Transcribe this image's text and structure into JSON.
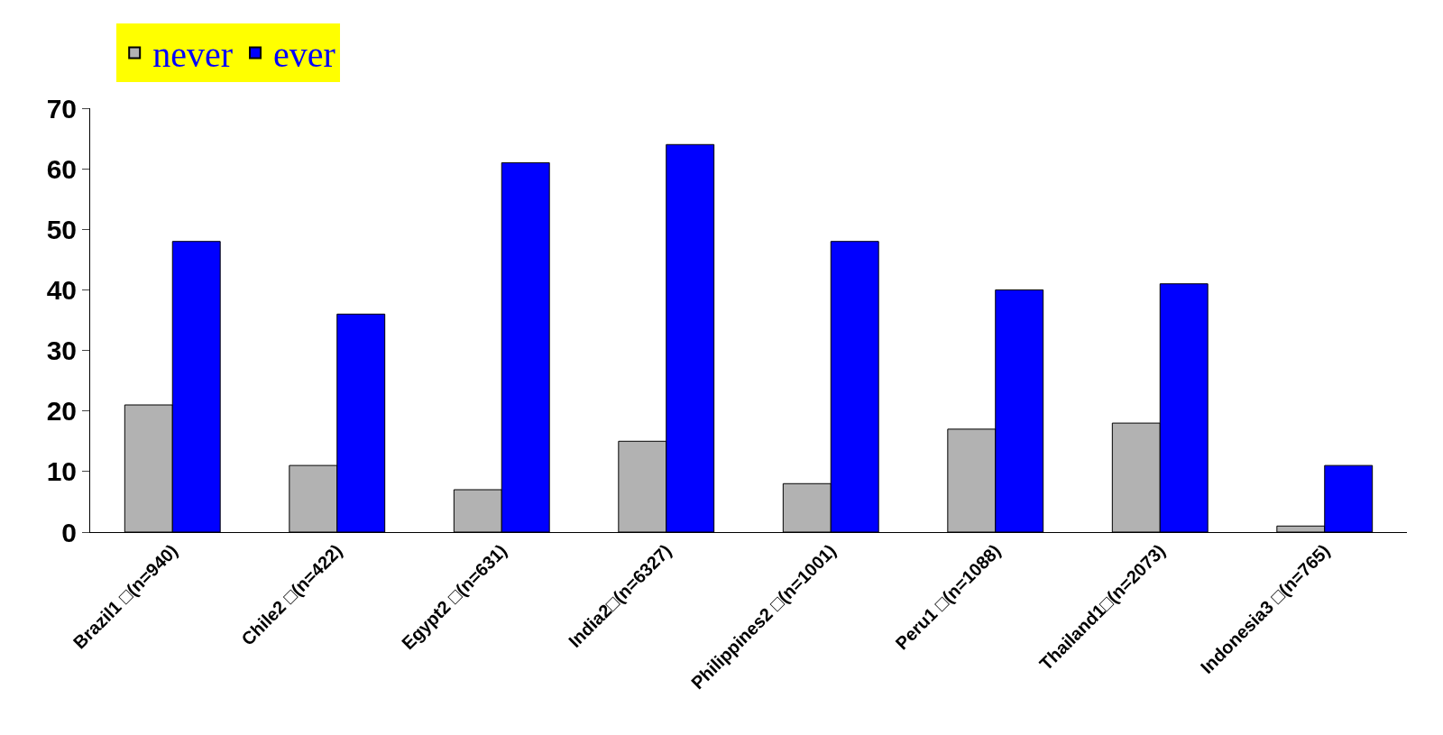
{
  "chart_data": {
    "type": "bar",
    "categories": [
      "Brazil1 □(n=940)",
      "Chile2 □(n=422)",
      "Egypt2 □(n=631)",
      "India2□(n=6327)",
      "Philippines2 □(n=1001)",
      "Peru1 □(n=1088)",
      "Thailand1□(n=2073)",
      "Indonesia3 □(n=765)"
    ],
    "series": [
      {
        "name": "never",
        "color": "#b2b2b2",
        "values": [
          21,
          11,
          7,
          15,
          8,
          17,
          18,
          1
        ]
      },
      {
        "name": "ever",
        "color": "#0000ff",
        "values": [
          48,
          36,
          61,
          64,
          48,
          40,
          41,
          11
        ]
      }
    ],
    "ylim": [
      0,
      70
    ],
    "yticks": [
      0,
      10,
      20,
      30,
      40,
      50,
      60,
      70
    ],
    "legend": "top left"
  }
}
